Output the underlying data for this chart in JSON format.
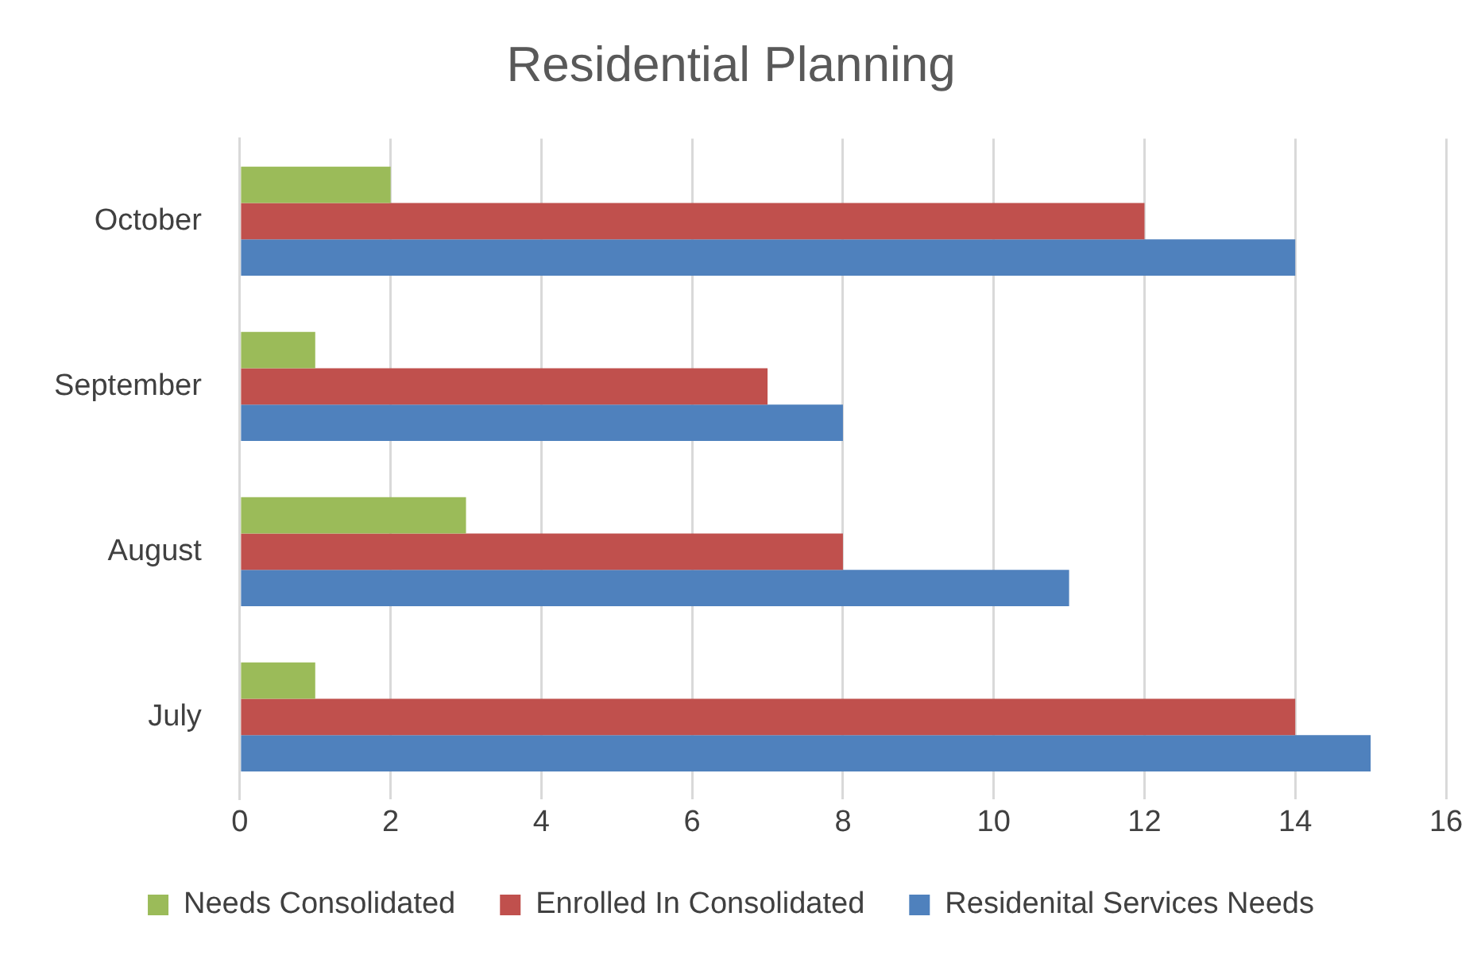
{
  "chart_data": {
    "type": "bar",
    "orientation": "horizontal",
    "title": "Residential Planning",
    "categories": [
      "October",
      "September",
      "August",
      "July"
    ],
    "series": [
      {
        "name": "Needs Consolidated",
        "color": "#9bbb59",
        "values": [
          2,
          1,
          3,
          1
        ]
      },
      {
        "name": "Enrolled In Consolidated",
        "color": "#c0504d",
        "values": [
          12,
          7,
          8,
          14
        ]
      },
      {
        "name": "Residenital Services Needs",
        "color": "#4f81bd",
        "values": [
          14,
          8,
          11,
          15
        ]
      }
    ],
    "xlim": [
      0,
      16
    ],
    "xticks": [
      0,
      2,
      4,
      6,
      8,
      10,
      12,
      14,
      16
    ],
    "grid": "x",
    "legend": "bottom"
  }
}
